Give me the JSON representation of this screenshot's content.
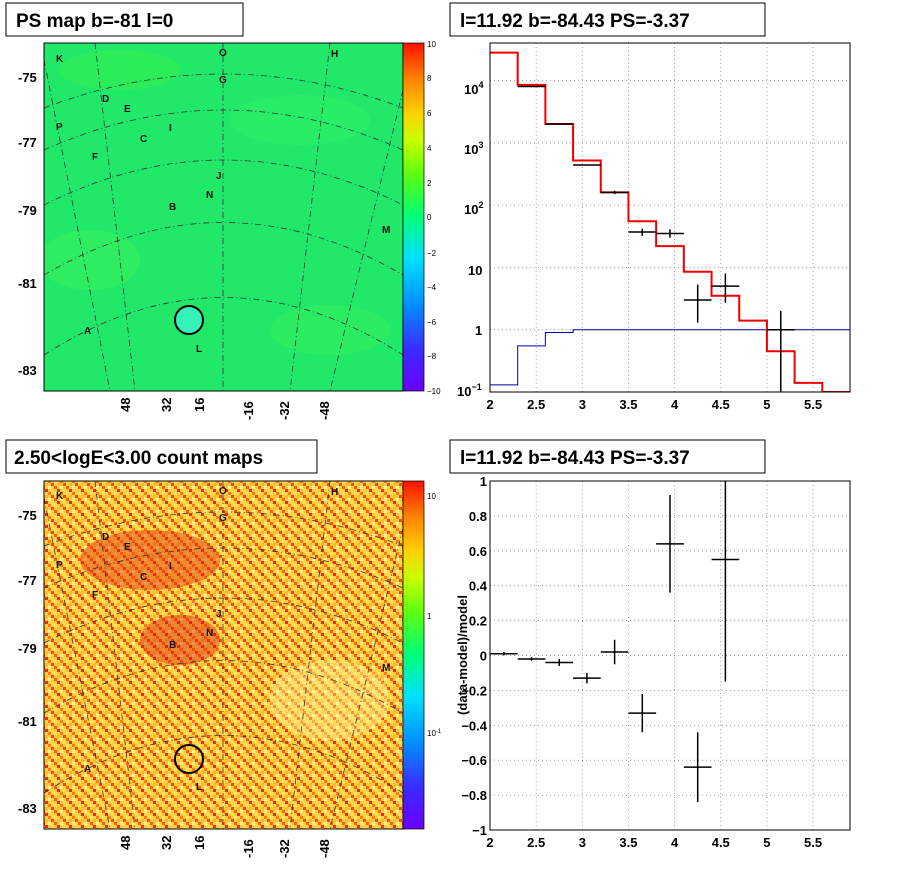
{
  "colors": {
    "map_green": "#22e86a",
    "data_marker": "#000000",
    "model_line": "#ee0000",
    "psf_line": "#0000aa",
    "grid": "#888888"
  },
  "chart_data": [
    {
      "id": "ps_map",
      "type": "heatmap",
      "title": "PS map b=-81 l=0",
      "y_ticks": [
        "-75",
        "-77",
        "-79",
        "-81",
        "-83"
      ],
      "x_ticks": [
        "48",
        "32",
        "16",
        "-16",
        "-32",
        "-48"
      ],
      "colorbar_ticks": [
        "10",
        "8",
        "6",
        "4",
        "2",
        "0",
        "−2",
        "−4",
        "−6",
        "−8",
        "−10"
      ],
      "colorbar_range": [
        -10,
        10
      ],
      "grid": true,
      "labels": [
        "K",
        "O",
        "H",
        "G",
        "D",
        "E",
        "P",
        "C",
        "I",
        "F",
        "J",
        "N",
        "B",
        "M",
        "A",
        "L"
      ]
    },
    {
      "id": "spectrum",
      "type": "line",
      "title": "l=11.92 b=-84.43 PS=-3.37",
      "xlabel": "",
      "ylabel": "",
      "xlim": [
        2,
        5.9
      ],
      "ylim": [
        0.1,
        40000
      ],
      "y_scale": "log",
      "grid": true,
      "x_ticks": [
        "2",
        "2.5",
        "3",
        "3.5",
        "4",
        "4.5",
        "5",
        "5.5"
      ],
      "y_ticks": [
        "10^4",
        "10^3",
        "10^2",
        "10",
        "1",
        "10^-1"
      ],
      "data_points": [
        {
          "x": 2.45,
          "y": 8000,
          "xerr": 0.15,
          "yerr_low": 0,
          "yerr_high": 0
        },
        {
          "x": 2.75,
          "y": 2000,
          "xerr": 0.15,
          "yerr_low": 0,
          "yerr_high": 0
        },
        {
          "x": 3.05,
          "y": 440,
          "xerr": 0.15,
          "yerr_low": 0,
          "yerr_high": 0
        },
        {
          "x": 3.35,
          "y": 160,
          "xerr": 0.15,
          "yerr_low": 10,
          "yerr_high": 10
        },
        {
          "x": 3.65,
          "y": 37,
          "xerr": 0.15,
          "yerr_low": 5,
          "yerr_high": 5
        },
        {
          "x": 3.95,
          "y": 35,
          "xerr": 0.15,
          "yerr_low": 5,
          "yerr_high": 6
        },
        {
          "x": 4.25,
          "y": 3,
          "xerr": 0.15,
          "yerr_low": 1.7,
          "yerr_high": 2.3
        },
        {
          "x": 4.55,
          "y": 5,
          "xerr": 0.15,
          "yerr_low": 2.3,
          "yerr_high": 3
        },
        {
          "x": 5.15,
          "y": 1,
          "xerr": 0.15,
          "yerr_low": 0.9,
          "yerr_high": 1.0
        }
      ],
      "model_steps": {
        "edges": [
          2,
          2.3,
          2.6,
          2.9,
          3.2,
          3.5,
          3.8,
          4.1,
          4.4,
          4.7,
          5.0,
          5.3,
          5.6,
          5.9
        ],
        "values": [
          28000,
          8500,
          2000,
          520,
          160,
          55,
          22,
          8.5,
          3.5,
          1.4,
          0.45,
          0.14,
          0.1
        ]
      },
      "psf_steps": {
        "edges": [
          2,
          2.3,
          2.6,
          2.9,
          3.2,
          3.5,
          3.8,
          4.1,
          4.4,
          4.7,
          5.0,
          5.3,
          5.6,
          5.9
        ],
        "values": [
          0.13,
          0.55,
          0.9,
          1,
          1,
          1,
          1,
          1,
          1,
          1,
          1,
          1,
          1
        ]
      }
    },
    {
      "id": "count_map",
      "type": "heatmap",
      "title": "2.50<logE<3.00 count maps",
      "y_ticks": [
        "-75",
        "-77",
        "-79",
        "-81",
        "-83"
      ],
      "x_ticks": [
        "48",
        "32",
        "16",
        "-16",
        "-32",
        "-48"
      ],
      "colorbar_ticks": [
        "10",
        "1",
        "10^-1"
      ],
      "grid": true,
      "labels": [
        "K",
        "O",
        "H",
        "G",
        "D",
        "E",
        "P",
        "C",
        "I",
        "F",
        "J",
        "N",
        "B",
        "M",
        "A",
        "L"
      ]
    },
    {
      "id": "residuals",
      "type": "scatter",
      "title": "l=11.92 b=-84.43 PS=-3.37",
      "ylabel": "(data-model)/model",
      "xlim": [
        2,
        5.9
      ],
      "ylim": [
        -1,
        1
      ],
      "grid": true,
      "x_ticks": [
        "2",
        "2.5",
        "3",
        "3.5",
        "4",
        "4.5",
        "5",
        "5.5"
      ],
      "y_ticks": [
        "1",
        "0.8",
        "0.6",
        "0.4",
        "0.2",
        "0",
        "−0.2",
        "−0.4",
        "−0.6",
        "−0.8",
        "−1"
      ],
      "points": [
        {
          "x": 2.15,
          "y": 0.01,
          "xerr": 0.15,
          "yerr": 0.01
        },
        {
          "x": 2.45,
          "y": -0.02,
          "xerr": 0.15,
          "yerr": 0.01
        },
        {
          "x": 2.75,
          "y": -0.04,
          "xerr": 0.15,
          "yerr": 0.02
        },
        {
          "x": 3.05,
          "y": -0.13,
          "xerr": 0.15,
          "yerr": 0.03
        },
        {
          "x": 3.35,
          "y": 0.02,
          "xerr": 0.15,
          "yerr": 0.07
        },
        {
          "x": 3.65,
          "y": -0.33,
          "xerr": 0.15,
          "yerr": 0.11
        },
        {
          "x": 3.95,
          "y": 0.64,
          "xerr": 0.15,
          "yerr": 0.28
        },
        {
          "x": 4.25,
          "y": -0.64,
          "xerr": 0.15,
          "yerr": 0.2
        },
        {
          "x": 4.55,
          "y": 0.55,
          "xerr": 0.15,
          "yerr": 0.7
        }
      ]
    }
  ]
}
